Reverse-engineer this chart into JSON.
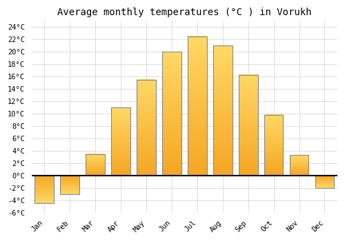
{
  "title": "Average monthly temperatures (°C ) in Vorukh",
  "months": [
    "Jan",
    "Feb",
    "Mar",
    "Apr",
    "May",
    "Jun",
    "Jul",
    "Aug",
    "Sep",
    "Oct",
    "Nov",
    "Dec"
  ],
  "values": [
    -4.5,
    -3.0,
    3.5,
    11.0,
    15.5,
    20.0,
    22.5,
    21.0,
    16.3,
    9.8,
    3.3,
    -2.0
  ],
  "bar_color_bottom": "#F5A623",
  "bar_color_top": "#FFD966",
  "bar_edge_color": "#888888",
  "ylim": [
    -6,
    25
  ],
  "yticks": [
    -6,
    -4,
    -2,
    0,
    2,
    4,
    6,
    8,
    10,
    12,
    14,
    16,
    18,
    20,
    22,
    24
  ],
  "ytick_labels": [
    "-6°C",
    "-4°C",
    "-2°C",
    "0°C",
    "2°C",
    "4°C",
    "6°C",
    "8°C",
    "10°C",
    "12°C",
    "14°C",
    "16°C",
    "18°C",
    "20°C",
    "22°C",
    "24°C"
  ],
  "background_color": "#ffffff",
  "grid_color": "#dddddd",
  "title_fontsize": 10,
  "tick_fontsize": 7.5,
  "bar_width": 0.75
}
